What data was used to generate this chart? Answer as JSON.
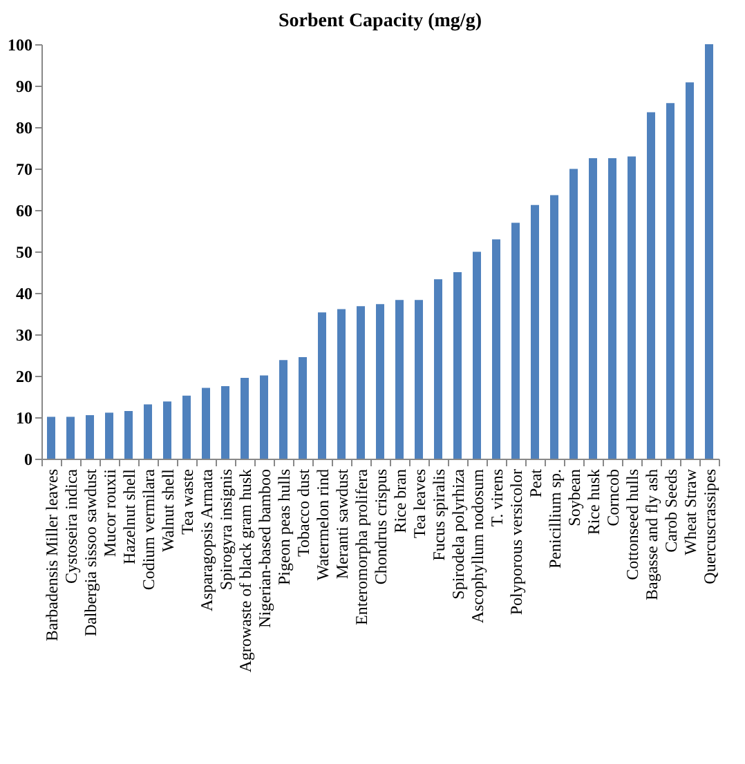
{
  "chart_data": {
    "type": "bar",
    "title": "Sorbent Capacity (mg/g)",
    "categories": [
      "Barbadensis Miller leaves",
      "Cystoseira indica",
      "Dalbergia sissoo sawdust",
      "Mucor rouxii",
      "Hazelnut shell",
      "Codium vermilara",
      "Walnut shell",
      "Tea waste",
      "Asparagopsis Armata",
      "Spirogyra insignis",
      "Agrowaste of black gram husk",
      "Nigerian-based bamboo",
      "Pigeon peas hulls",
      "Tobacco dust",
      "Watermelon rind",
      "Meranti sawdust",
      "Enteromorpha prolifera",
      "Chondrus crispus",
      "Rice bran",
      "Tea leaves",
      "Fucus spiralis",
      "Spirodela polyrhiza",
      "Ascophyllum nodosum",
      "T. virens",
      "Polyporous versicolor",
      "Peat",
      "Penicillium sp.",
      "Soybean",
      "Rice husk",
      "Corncob",
      "Cottonseed hulls",
      "Bagasse and fly ash",
      "Carob Seeds",
      "Wheat Straw",
      "Quercuscrassipes"
    ],
    "values": [
      10.1,
      10.1,
      10.5,
      11.1,
      11.5,
      13.1,
      13.8,
      15.2,
      17.1,
      17.5,
      19.5,
      20.1,
      23.8,
      24.5,
      35.3,
      36.1,
      36.8,
      37.3,
      38.3,
      38.3,
      43.3,
      45.0,
      49.9,
      52.9,
      56.9,
      61.2,
      63.6,
      69.9,
      72.5,
      72.5,
      72.9,
      83.6,
      85.8,
      90.8,
      100
    ],
    "color": "#4f81bd",
    "ylim": [
      0,
      100
    ],
    "yticks": [
      0,
      10,
      20,
      30,
      40,
      50,
      60,
      70,
      80,
      90,
      100
    ],
    "grid": false
  }
}
